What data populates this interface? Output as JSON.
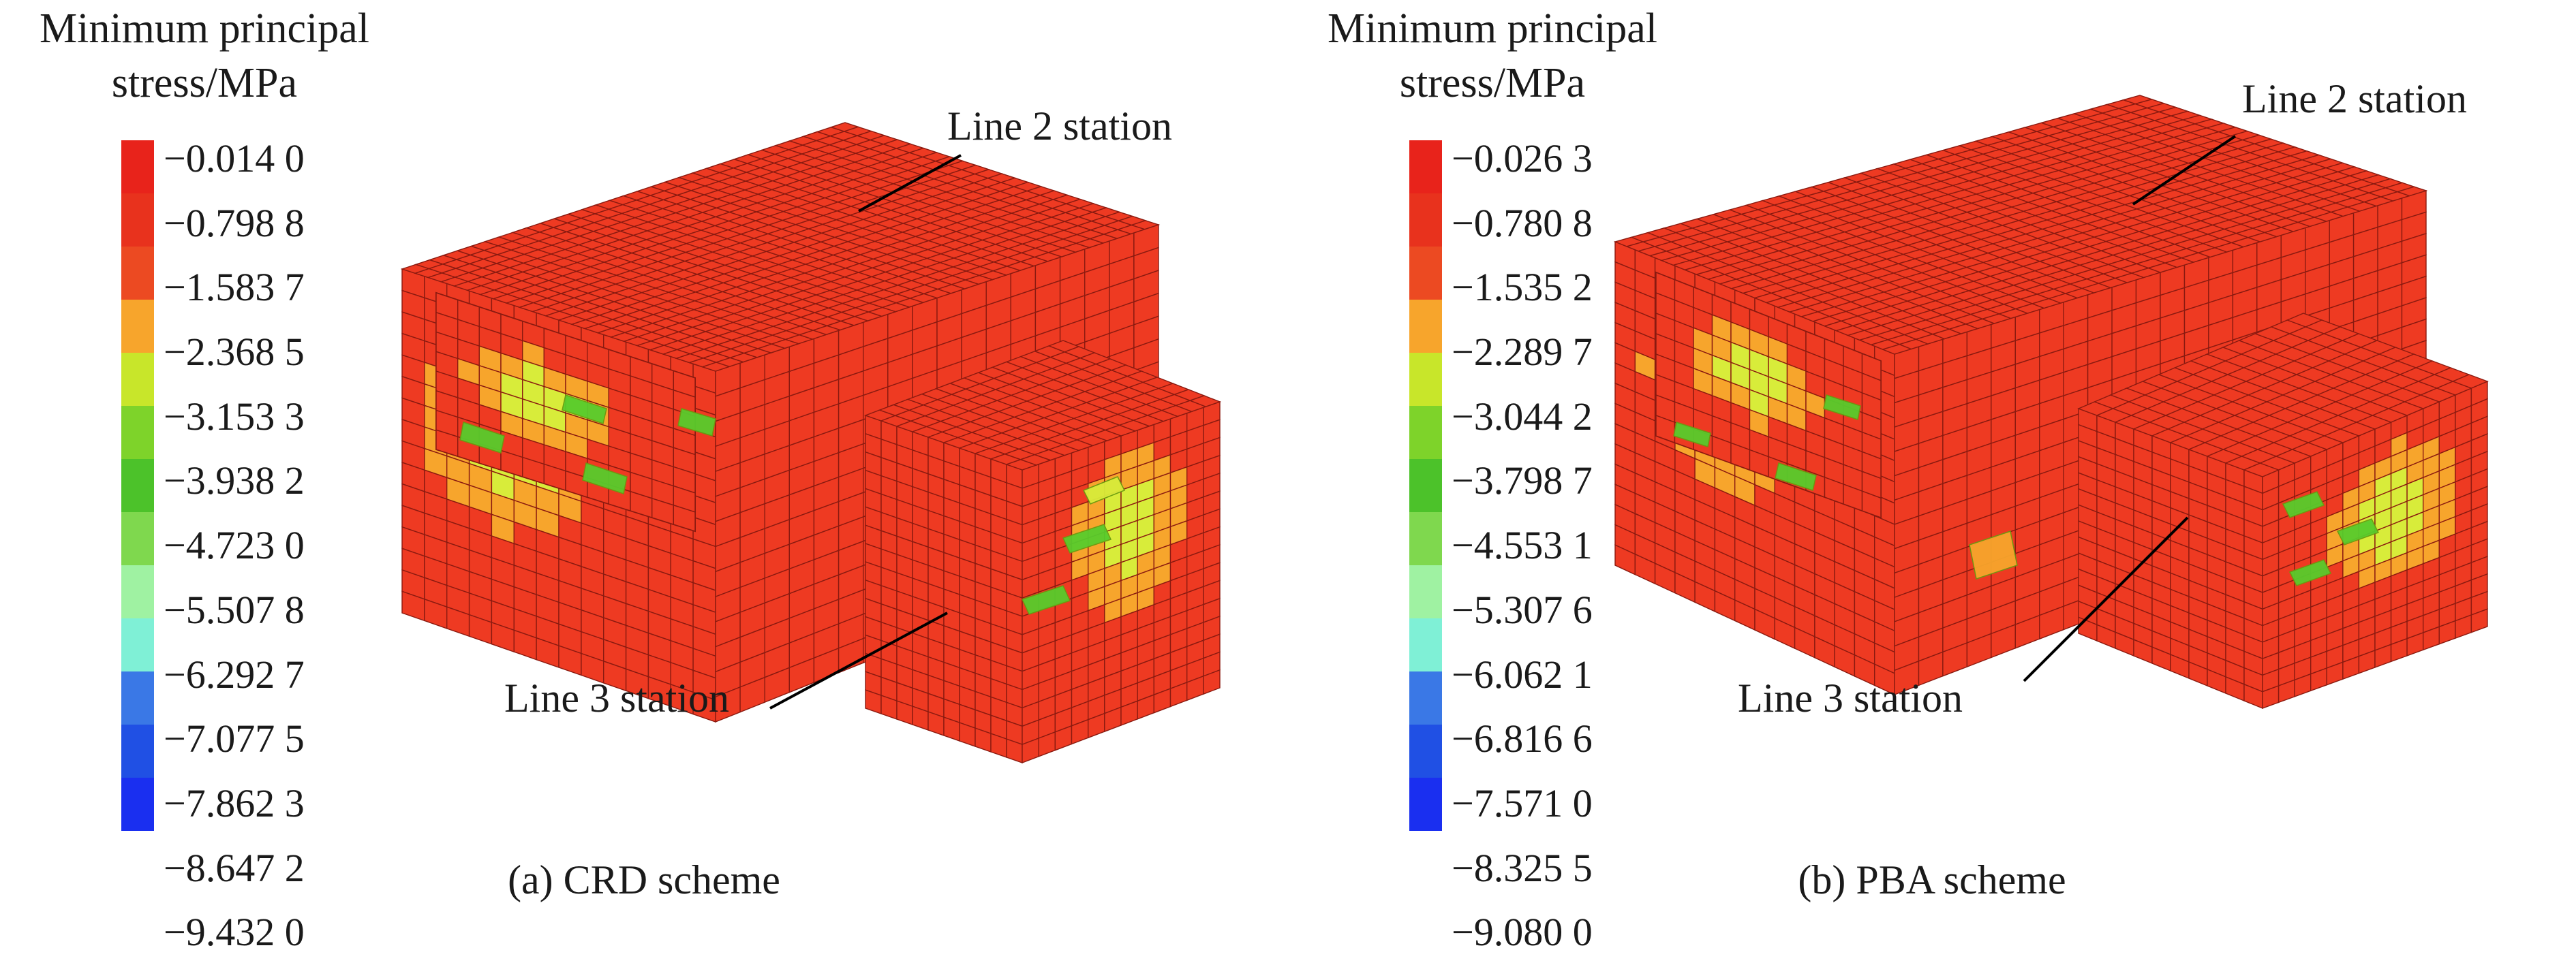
{
  "panels": [
    {
      "caption": "(a) CRD scheme",
      "legend_title_line1": "Minimum principal",
      "legend_title_line2": "stress/MPa",
      "legend_values": [
        "−0.014 0",
        "−0.798 8",
        "−1.583 7",
        "−2.368 5",
        "−3.153 3",
        "−3.938 2",
        "−4.723 0",
        "−5.507 8",
        "−6.292 7",
        "−7.077 5",
        "−7.862 3",
        "−8.647 2",
        "−9.432 0"
      ],
      "callout_line2": "Line 2 station",
      "callout_line3": "Line 3 station"
    },
    {
      "caption": "(b) PBA scheme",
      "legend_title_line1": "Minimum principal",
      "legend_title_line2": "stress/MPa",
      "legend_values": [
        "−0.026 3",
        "−0.780 8",
        "−1.535 2",
        "−2.289 7",
        "−3.044 2",
        "−3.798 7",
        "−4.553 1",
        "−5.307 6",
        "−6.062 1",
        "−6.816 6",
        "−7.571 0",
        "−8.325 5",
        "−9.080 0"
      ],
      "callout_line2": "Line 2 station",
      "callout_line3": "Line 3 station"
    }
  ],
  "colorbar_colors": [
    "#e8231b",
    "#e8321d",
    "#ec4a22",
    "#f7a52c",
    "#c8e62a",
    "#7ed32a",
    "#4cc22a",
    "#7fd84e",
    "#9ff2a2",
    "#7ff0d6",
    "#3a78e6",
    "#2050e4",
    "#1a2ff0"
  ],
  "mesh_colors": {
    "base": "#ee3a22",
    "edge": "#8a1a10",
    "hot": "#f5c040",
    "warm": "#f7a52c",
    "green": "#58cc2c",
    "yellow": "#d8ec3a"
  }
}
